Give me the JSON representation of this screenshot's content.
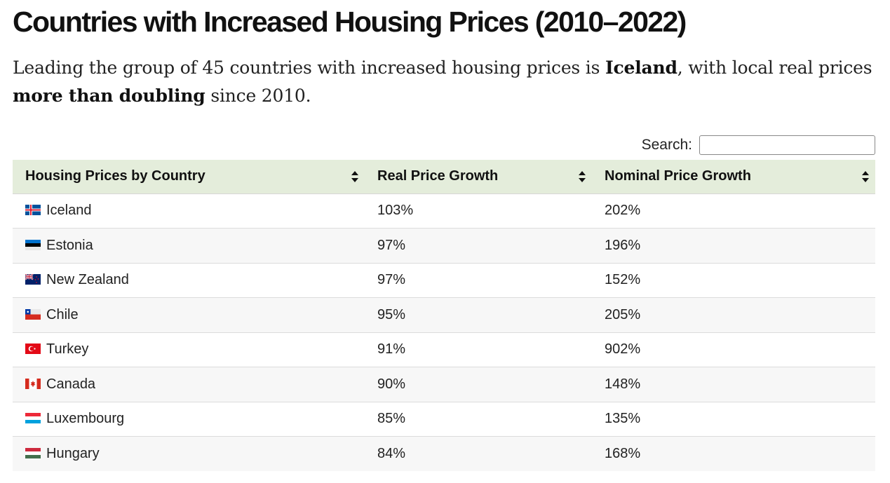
{
  "title": "Countries with Increased Housing Prices (2010–2022)",
  "subtitle": {
    "part1": "Leading the group of 45 countries with increased housing prices is ",
    "bold1": "Iceland",
    "part2": ", with local real prices ",
    "bold2": "more than doubling",
    "part3": " since 2010."
  },
  "search": {
    "label": "Search:",
    "value": ""
  },
  "table": {
    "headers": [
      "Housing Prices by Country",
      "Real Price Growth",
      "Nominal Price Growth"
    ],
    "rows": [
      {
        "country": "Iceland",
        "flag": "iceland-flag-icon",
        "real": "103%",
        "nominal": "202%"
      },
      {
        "country": "Estonia",
        "flag": "estonia-flag-icon",
        "real": "97%",
        "nominal": "196%"
      },
      {
        "country": "New Zealand",
        "flag": "new-zealand-flag-icon",
        "real": "97%",
        "nominal": "152%"
      },
      {
        "country": "Chile",
        "flag": "chile-flag-icon",
        "real": "95%",
        "nominal": "205%"
      },
      {
        "country": "Turkey",
        "flag": "turkey-flag-icon",
        "real": "91%",
        "nominal": "902%"
      },
      {
        "country": "Canada",
        "flag": "canada-flag-icon",
        "real": "90%",
        "nominal": "148%"
      },
      {
        "country": "Luxembourg",
        "flag": "luxembourg-flag-icon",
        "real": "85%",
        "nominal": "135%"
      },
      {
        "country": "Hungary",
        "flag": "hungary-flag-icon",
        "real": "84%",
        "nominal": "168%"
      }
    ]
  },
  "colors": {
    "header_bg": "#e4eddb",
    "stripe_bg": "#f7f7f7"
  }
}
